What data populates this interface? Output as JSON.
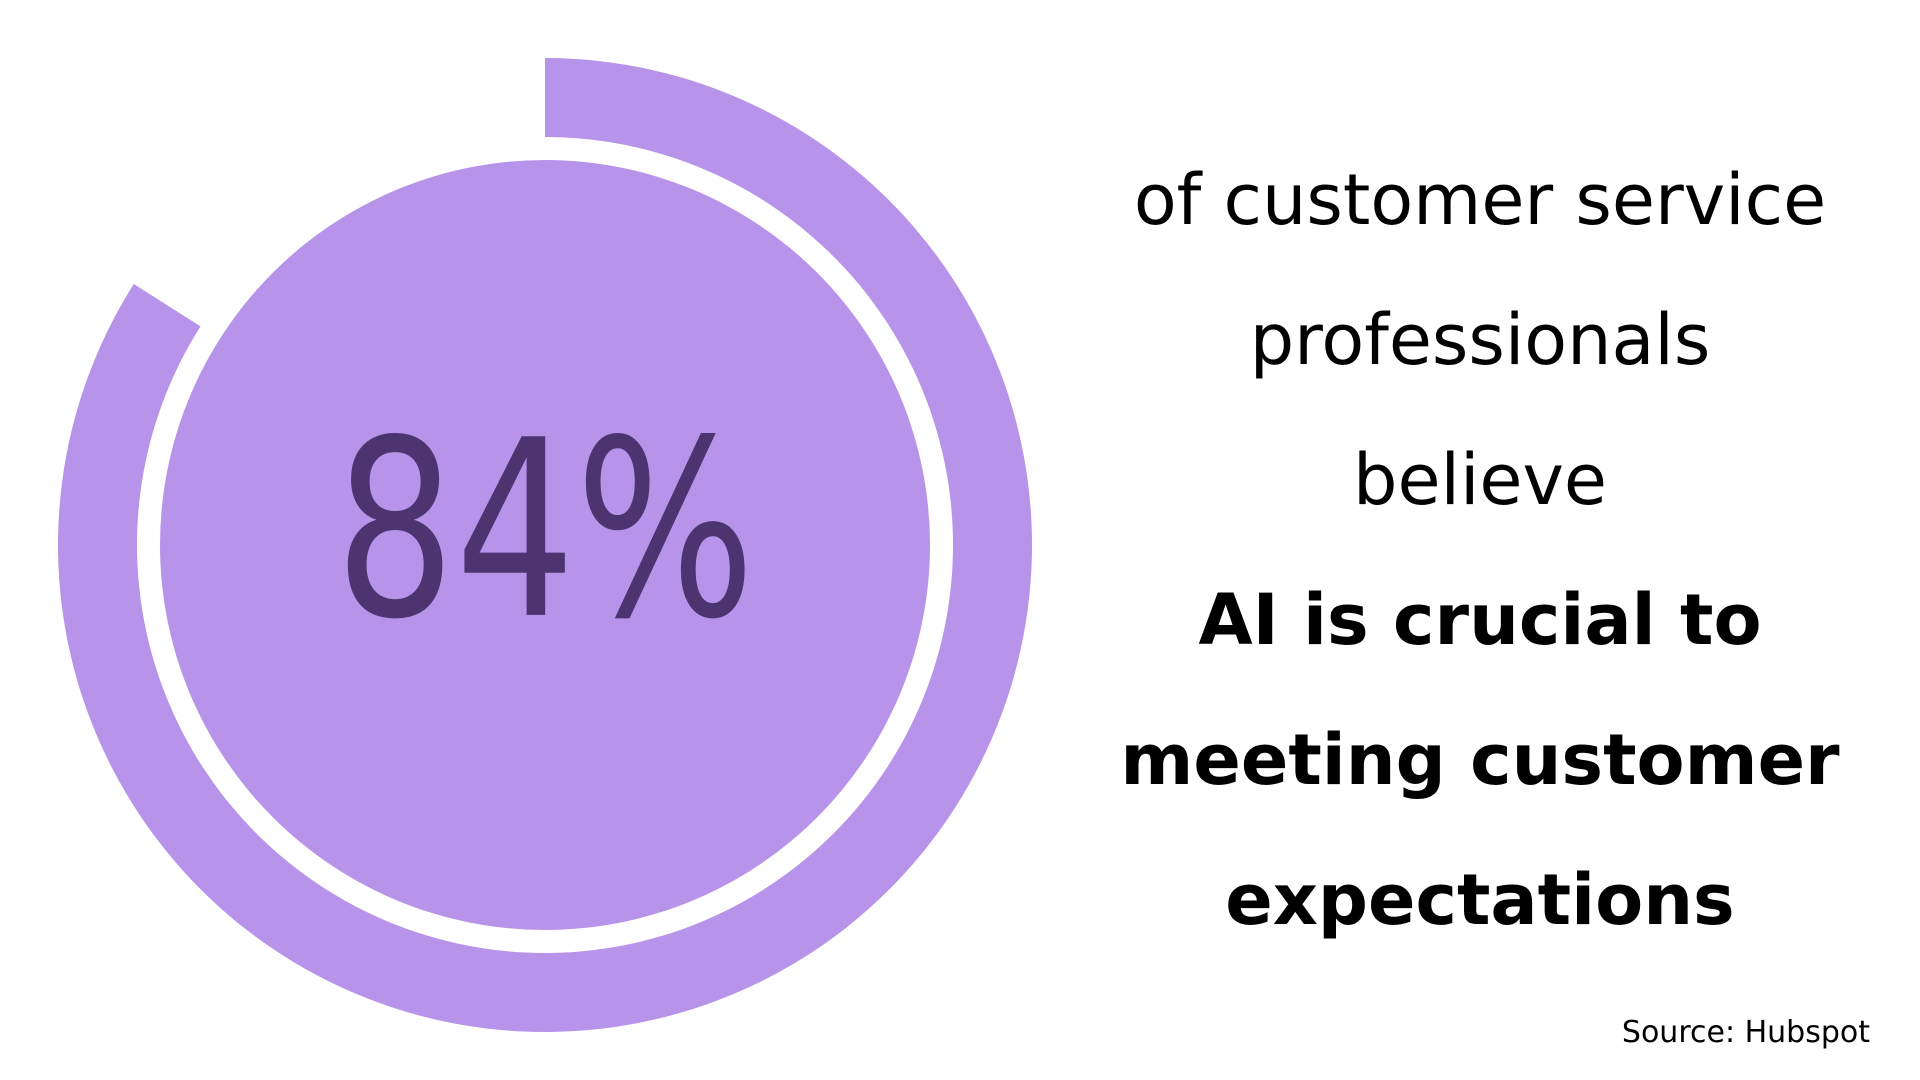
{
  "chart_data": {
    "type": "pie",
    "variant": "donut-progress",
    "value_percent": 84,
    "center_label": "84%",
    "colors": {
      "fill": "#b794ea",
      "center_text": "#4b3470",
      "background": "#ffffff"
    }
  },
  "statement": {
    "line1": "of customer service",
    "line2": "professionals",
    "line3": "believe",
    "line4": "AI is crucial to",
    "line5": "meeting customer",
    "line6": "expectations"
  },
  "source": "Source: Hubspot"
}
